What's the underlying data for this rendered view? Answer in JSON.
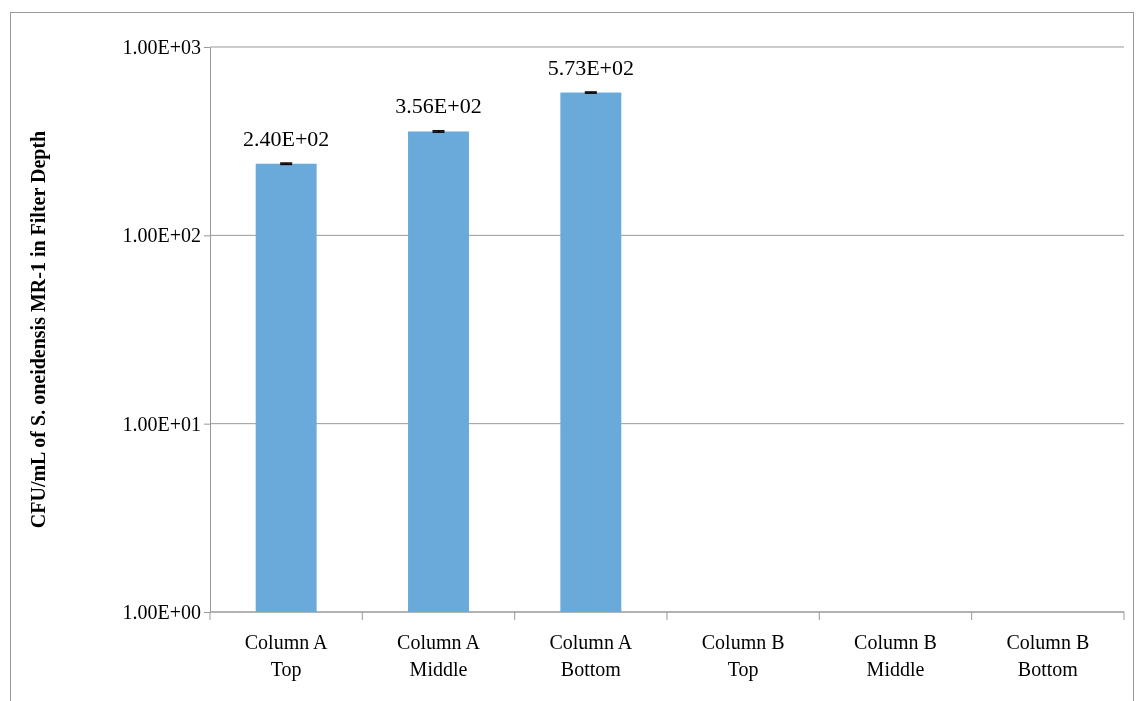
{
  "chart_data": {
    "type": "bar",
    "ylabel": "CFU/mL of S. oneidensis MR-1 in Filter Depth",
    "categories": [
      "Column A Top",
      "Column A Middle",
      "Column A Bottom",
      "Column B Top",
      "Column B Middle",
      "Column B Bottom"
    ],
    "values": [
      240,
      356,
      573,
      null,
      null,
      null
    ],
    "errors": [
      2,
      3,
      4,
      null,
      null,
      null
    ],
    "value_labels": [
      "2.40E+02",
      "3.56E+02",
      "5.73E+02",
      null,
      null,
      null
    ],
    "color": "#6aaadb",
    "log": true,
    "ylim": [
      1,
      1000
    ],
    "yticks": [
      {
        "value": 1,
        "label": "1.00E+00"
      },
      {
        "value": 10,
        "label": "1.00E+01"
      },
      {
        "value": 100,
        "label": "1.00E+02"
      },
      {
        "value": 1000,
        "label": "1.00E+03"
      }
    ],
    "grid": "y"
  }
}
